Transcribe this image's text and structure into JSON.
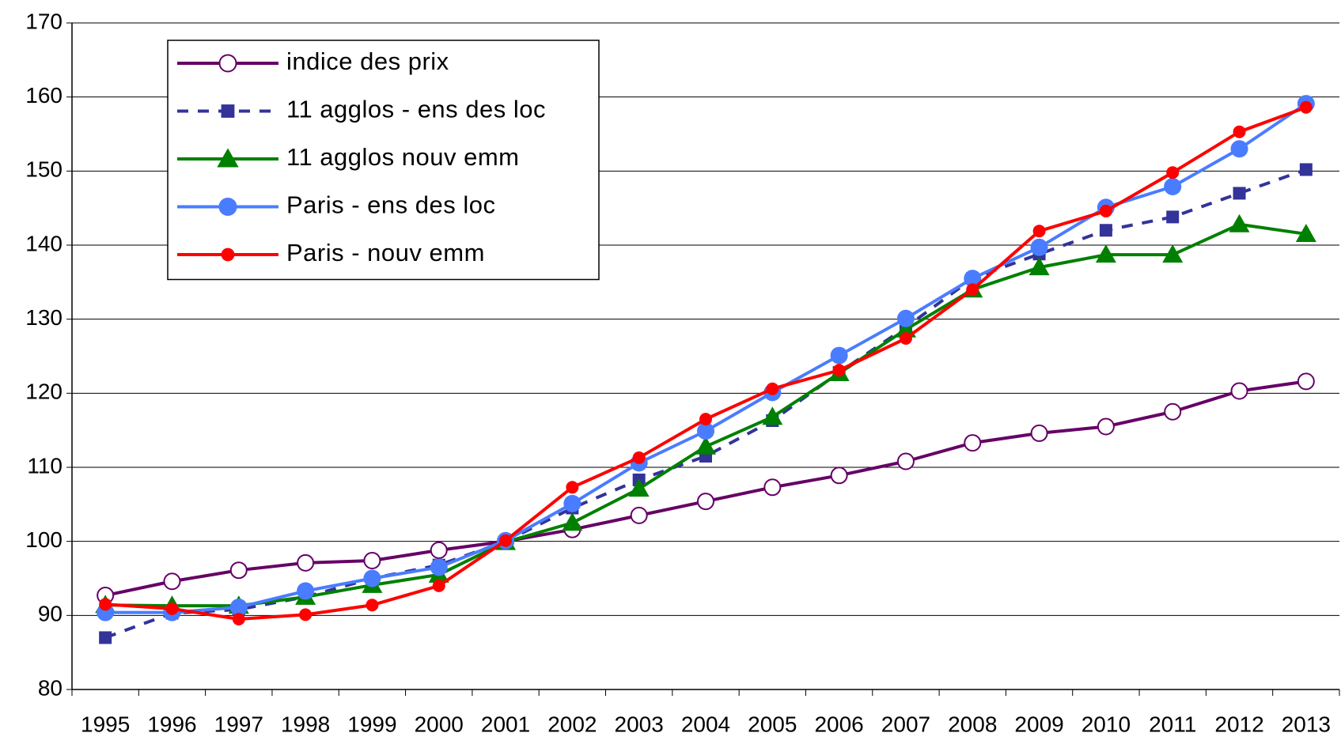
{
  "chart_data": {
    "type": "line",
    "categories": [
      "1995",
      "1996",
      "1997",
      "1998",
      "1999",
      "2000",
      "2001",
      "2002",
      "2003",
      "2004",
      "2005",
      "2006",
      "2007",
      "2008",
      "2009",
      "2010",
      "2011",
      "2012",
      "2013"
    ],
    "series": [
      {
        "name": "indice des prix",
        "color": "#660066",
        "marker": "open-circle",
        "values": [
          92.7,
          94.6,
          96.1,
          97.1,
          97.4,
          98.8,
          100,
          101.6,
          103.5,
          105.4,
          107.3,
          108.9,
          110.8,
          113.3,
          114.6,
          115.5,
          117.5,
          120.3,
          121.6
        ]
      },
      {
        "name": "11 agglos - ens des loc",
        "color": "#333399",
        "marker": "square",
        "dashed": true,
        "values": [
          87.0,
          90.3,
          90.8,
          92.5,
          95.0,
          96.8,
          100,
          104.5,
          108.3,
          111.5,
          116.3,
          122.8,
          128.9,
          135.5,
          138.8,
          142.0,
          143.8,
          147.0,
          150.2
        ]
      },
      {
        "name": "11 agglos nouv emm",
        "color": "#008000",
        "marker": "triangle",
        "values": [
          91.4,
          91.3,
          91.3,
          92.5,
          94.1,
          95.5,
          99.9,
          102.5,
          107.1,
          112.8,
          116.8,
          122.7,
          128.6,
          134.0,
          137.0,
          138.7,
          138.7,
          142.8,
          141.5
        ]
      },
      {
        "name": "Paris - ens des loc",
        "color": "#4a7cff",
        "marker": "big-circle",
        "values": [
          90.4,
          90.4,
          91.1,
          93.3,
          95.0,
          96.5,
          100.1,
          105.1,
          110.6,
          114.9,
          120.1,
          125.1,
          130.1,
          135.5,
          139.7,
          145.1,
          147.9,
          153.0,
          159.1
        ]
      },
      {
        "name": "Paris - nouv emm",
        "color": "#ff0000",
        "marker": "circle",
        "values": [
          91.5,
          90.9,
          89.5,
          90.1,
          91.4,
          94.0,
          100.1,
          107.3,
          111.3,
          116.5,
          120.6,
          123.1,
          127.4,
          134.0,
          141.9,
          144.6,
          149.8,
          155.3,
          158.6
        ]
      }
    ],
    "ylim": [
      80,
      170
    ],
    "yticks": [
      80,
      90,
      100,
      110,
      120,
      130,
      140,
      150,
      160,
      170
    ],
    "grid": true,
    "legend": "top-left"
  }
}
